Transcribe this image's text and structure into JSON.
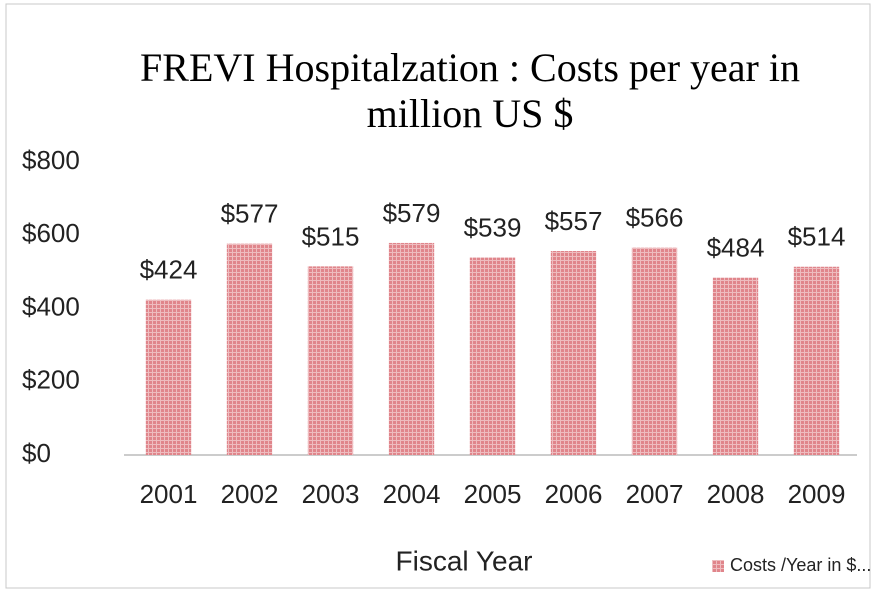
{
  "chart_data": {
    "type": "bar",
    "title": "FREVI Hospitalzation : Costs per year in million US $",
    "x_label": "Fiscal Year",
    "categories": [
      "2001",
      "2002",
      "2003",
      "2004",
      "2005",
      "2006",
      "2007",
      "2008",
      "2009"
    ],
    "series": [
      {
        "name": "Costs /Year in $...",
        "color": "#e0858b",
        "values": [
          424,
          577,
          515,
          579,
          539,
          557,
          566,
          484,
          514
        ],
        "value_labels": [
          "$424",
          "$577",
          "$515",
          "$579",
          "$539",
          "$557",
          "$566",
          "$484",
          "$514"
        ]
      }
    ],
    "ylim": [
      0,
      800
    ],
    "yticks": [
      {
        "value": 0,
        "label": "$0"
      },
      {
        "value": 200,
        "label": "$200"
      },
      {
        "value": 400,
        "label": "$400"
      },
      {
        "value": 600,
        "label": "$600"
      },
      {
        "value": 800,
        "label": "$800"
      }
    ],
    "grid": false,
    "legend": "bottom-right"
  }
}
